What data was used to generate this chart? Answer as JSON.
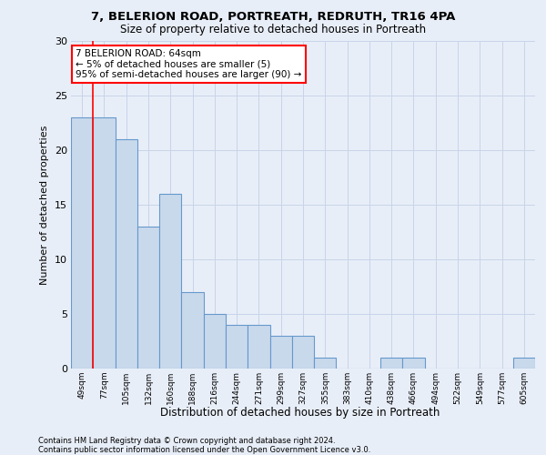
{
  "title_line1": "7, BELERION ROAD, PORTREATH, REDRUTH, TR16 4PA",
  "title_line2": "Size of property relative to detached houses in Portreath",
  "xlabel": "Distribution of detached houses by size in Portreath",
  "ylabel": "Number of detached properties",
  "categories": [
    "49sqm",
    "77sqm",
    "105sqm",
    "132sqm",
    "160sqm",
    "188sqm",
    "216sqm",
    "244sqm",
    "271sqm",
    "299sqm",
    "327sqm",
    "355sqm",
    "383sqm",
    "410sqm",
    "438sqm",
    "466sqm",
    "494sqm",
    "522sqm",
    "549sqm",
    "577sqm",
    "605sqm"
  ],
  "values": [
    23,
    23,
    21,
    13,
    16,
    7,
    5,
    4,
    4,
    3,
    3,
    1,
    0,
    0,
    1,
    1,
    0,
    0,
    0,
    0,
    1
  ],
  "bar_color": "#c9d9ec",
  "bar_edge_color": "#6699cc",
  "bar_edge_width": 0.8,
  "grid_color": "#c8d4e8",
  "background_color": "#e8eef8",
  "annotation_text": "7 BELERION ROAD: 64sqm\n← 5% of detached houses are smaller (5)\n95% of semi-detached houses are larger (90) →",
  "annotation_box_color": "white",
  "annotation_box_edge_color": "red",
  "red_line_x": 0.5,
  "ylim": [
    0,
    30
  ],
  "yticks": [
    0,
    5,
    10,
    15,
    20,
    25,
    30
  ],
  "footnote_line1": "Contains HM Land Registry data © Crown copyright and database right 2024.",
  "footnote_line2": "Contains public sector information licensed under the Open Government Licence v3.0."
}
